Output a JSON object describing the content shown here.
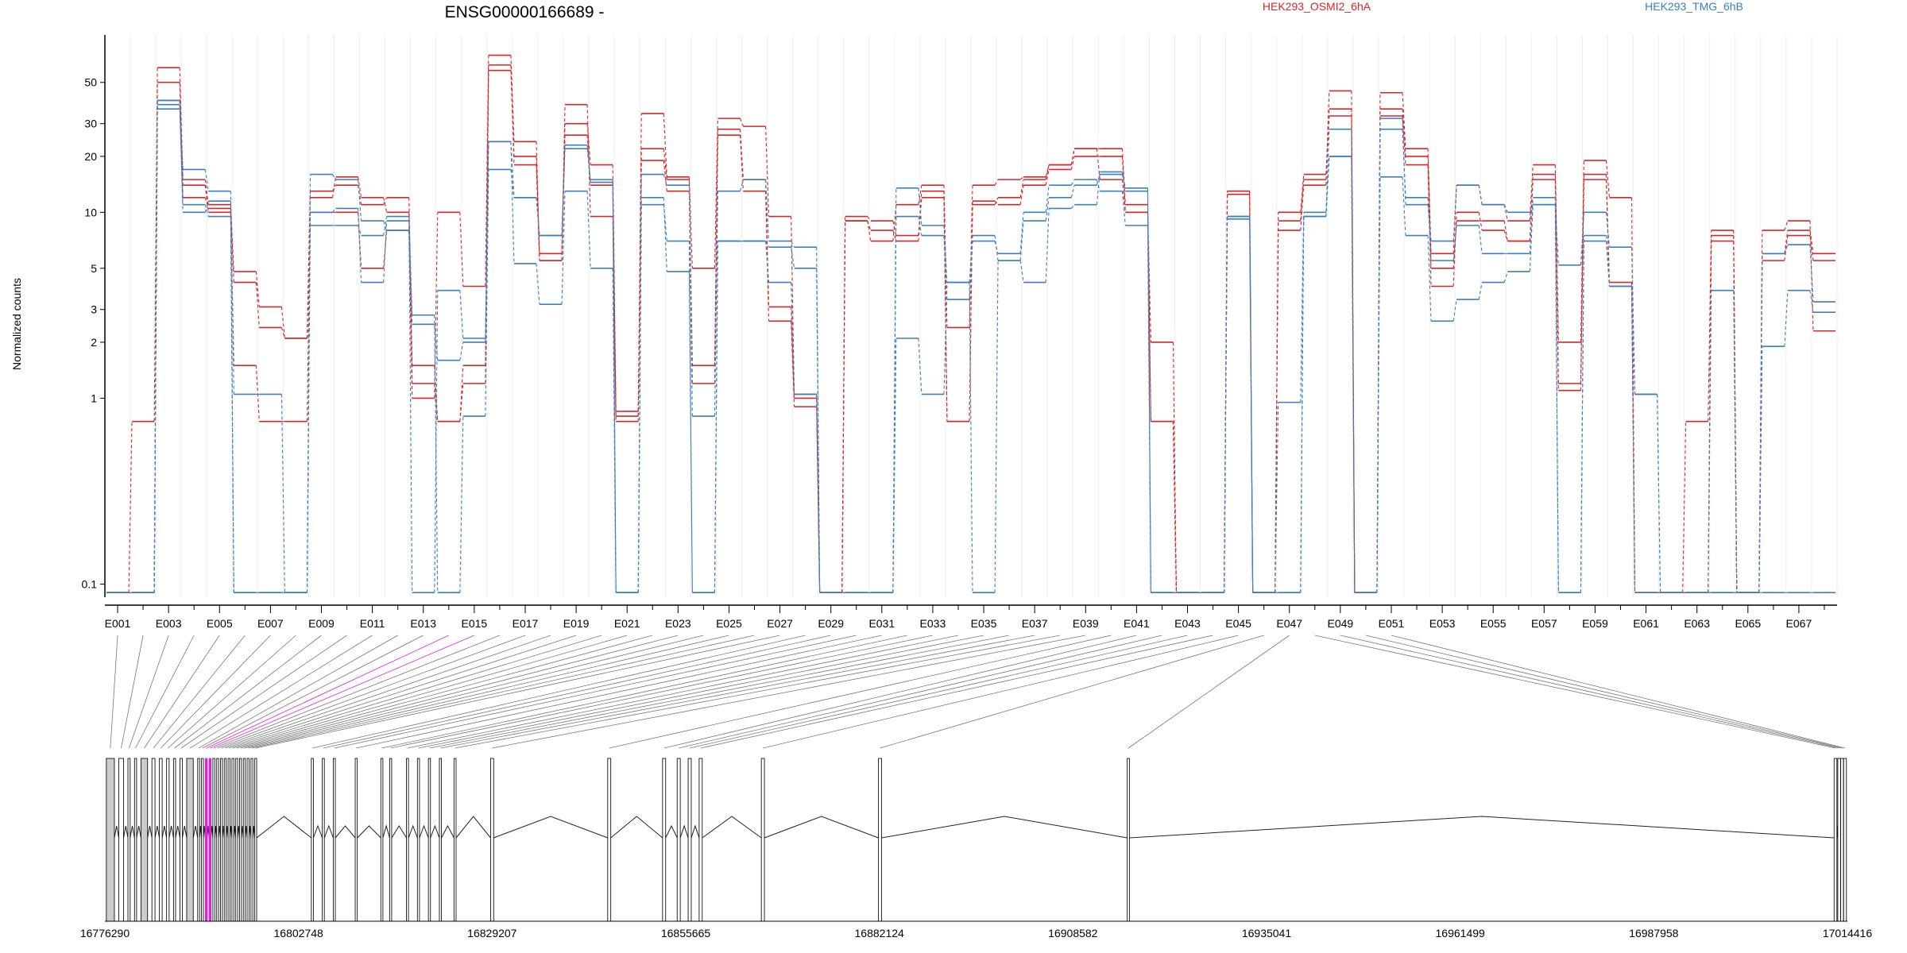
{
  "header": {
    "title": "ENSG00000166689 -",
    "legend": [
      {
        "label": "HEK293_OSMI2_6hA",
        "color": "#d62728"
      },
      {
        "label": "HEK293_TMG_6hB",
        "color": "#3a7fc1"
      }
    ]
  },
  "chart_data": {
    "type": "line",
    "title": "ENSG00000166689 -",
    "ylabel": "Normalized counts",
    "xlabel": "",
    "y_scale": "log",
    "ylim": [
      0.085,
      90
    ],
    "y_ticks": [
      0.1,
      1,
      2,
      3,
      5,
      10,
      20,
      30,
      50
    ],
    "y_tick_labels": [
      "0.1",
      "1",
      "2",
      "3",
      "5",
      "10",
      "20",
      "30",
      "50"
    ],
    "exon_count": 68,
    "x_tick_labels": [
      "E001",
      "E003",
      "E005",
      "E007",
      "E009",
      "E011",
      "E013",
      "E015",
      "E017",
      "E019",
      "E021",
      "E023",
      "E025",
      "E027",
      "E029",
      "E031",
      "E033",
      "E035",
      "E037",
      "E039",
      "E041",
      "E043",
      "E045",
      "E047",
      "E049",
      "E051",
      "E053",
      "E055",
      "E057",
      "E059",
      "E061",
      "E063",
      "E065",
      "E067"
    ],
    "legend_placement": "top",
    "series": [
      {
        "name": "HEK293_OSMI2_6hA",
        "color": "#d62728",
        "values": [
          0.09,
          0.75,
          60,
          15,
          11,
          4.8,
          3.1,
          2.1,
          12,
          15.5,
          12,
          10,
          1.5,
          0.75,
          1.5,
          58,
          20,
          6,
          30,
          18,
          0.85,
          22,
          15,
          1.5,
          28,
          15,
          3.1,
          1.0,
          0.09,
          9,
          8,
          7,
          12,
          0.75,
          11,
          12,
          15,
          18,
          22,
          22,
          11,
          0.75,
          0.09,
          0.09,
          13,
          0.09,
          10,
          16,
          36,
          0.09,
          36,
          20,
          5,
          9,
          9,
          7,
          16,
          1.2,
          16,
          4.2,
          0.09,
          0.09,
          0.75,
          8,
          0.09,
          6,
          8,
          6
        ]
      },
      {
        "name": "HEK293_OSMI2_6hA",
        "color": "#d62728",
        "values": [
          0.09,
          0.09,
          50,
          14,
          10,
          4.2,
          2.4,
          2.1,
          13,
          14,
          11,
          12,
          1.2,
          0.75,
          1.2,
          62,
          18,
          5.5,
          26,
          14,
          0.8,
          19,
          13,
          1.2,
          26,
          13,
          2.6,
          0.9,
          0.09,
          9.5,
          9,
          7.5,
          13,
          0.75,
          11.5,
          11,
          14,
          17,
          20,
          20,
          10,
          0.75,
          0.09,
          0.09,
          12.5,
          0.09,
          9,
          15,
          33,
          0.09,
          33,
          18,
          4,
          10,
          8,
          7,
          15,
          1.1,
          15,
          4,
          0.09,
          0.09,
          0.09,
          7,
          0.09,
          5.5,
          7.5,
          5.5
        ]
      },
      {
        "name": "HEK293_OSMI2_6hA",
        "color": "#d62728",
        "values": [
          0.09,
          0.09,
          40,
          12,
          10.5,
          1.5,
          0.75,
          0.75,
          10,
          10,
          5,
          8,
          1.0,
          10,
          4,
          70,
          24,
          5.5,
          38,
          9.5,
          0.75,
          34,
          15.5,
          5.0,
          32,
          29,
          9.5,
          1.05,
          0.09,
          9,
          7,
          11,
          14,
          2.4,
          14,
          15,
          15.5,
          18,
          22,
          15,
          10,
          2.0,
          0.09,
          0.09,
          13,
          0.09,
          8,
          14,
          45,
          0.09,
          44,
          22,
          6,
          14,
          11,
          9,
          18,
          2.0,
          19,
          12,
          0.09,
          0.09,
          0.09,
          7.5,
          0.09,
          8,
          9,
          2.3
        ]
      },
      {
        "name": "HEK293_TMG_6hB",
        "color": "#3a7fc1",
        "values": [
          0.09,
          0.09,
          38,
          17,
          13,
          1.05,
          1.05,
          0.09,
          16,
          15,
          9,
          8,
          2.5,
          1.6,
          2.0,
          24,
          12,
          7.5,
          22,
          14.5,
          0.09,
          16,
          14,
          0.8,
          13,
          15,
          7,
          6.5,
          0.09,
          0.09,
          0.09,
          9.5,
          7.5,
          3.4,
          7,
          6,
          10,
          14,
          15,
          13,
          8.5,
          0.09,
          0.09,
          0.09,
          9.5,
          0.09,
          0.95,
          10,
          28,
          0.09,
          32,
          11,
          7,
          14,
          11,
          10,
          11,
          5.2,
          10,
          6.5,
          1.05,
          0.09,
          0.09,
          0.09,
          0.09,
          6,
          6.7,
          3.3
        ]
      },
      {
        "name": "HEK293_TMG_6hB",
        "color": "#3a7fc1",
        "values": [
          0.09,
          0.09,
          36,
          11,
          9.5,
          0.09,
          0.09,
          0.09,
          8.5,
          8.5,
          7.5,
          9.5,
          2.8,
          0.09,
          0.8,
          17,
          12,
          7.5,
          23,
          15,
          0.09,
          11,
          7,
          0.09,
          7,
          7,
          6.5,
          5.0,
          0.09,
          0.09,
          0.09,
          13.5,
          8.5,
          4.2,
          7.5,
          5.5,
          9,
          12,
          14,
          16,
          13,
          0.09,
          0.09,
          0.09,
          9.2,
          0.09,
          0.09,
          9.5,
          20,
          0.09,
          28,
          12,
          5.5,
          8.5,
          6,
          6,
          12,
          0.09,
          7,
          4,
          0.09,
          0.09,
          0.09,
          3.8,
          0.09,
          1.9,
          3.8,
          2.9
        ]
      },
      {
        "name": "HEK293_TMG_6hB",
        "color": "#3a7fc1",
        "values": [
          0.09,
          0.09,
          40,
          10,
          11.5,
          0.09,
          0.09,
          0.09,
          10,
          10.5,
          4.2,
          9,
          0.09,
          3.8,
          2.1,
          24,
          5.3,
          3.2,
          13,
          5,
          0.09,
          12,
          4.8,
          0.09,
          7,
          7,
          4.2,
          1.05,
          0.09,
          0.09,
          0.09,
          2.1,
          1.05,
          4.2,
          0.09,
          5.5,
          4.2,
          10.5,
          11,
          16.5,
          13.5,
          0.09,
          0.09,
          0.09,
          9.5,
          0.09,
          0.09,
          9.5,
          20,
          0.09,
          15.5,
          7.5,
          2.6,
          3.4,
          4.2,
          4.8,
          11,
          0.09,
          7.5,
          4,
          1.05,
          0.09,
          0.09,
          0.09,
          0.09,
          0.09,
          0.09,
          0.09
        ]
      }
    ],
    "gene_model": {
      "start": 16776290,
      "end": 17014416,
      "tick_labels": [
        "16776290",
        "16802748",
        "16829207",
        "16855665",
        "16882124",
        "16908582",
        "16935041",
        "16961499",
        "16987958",
        "17014416"
      ],
      "highlight_color": "#e020e0"
    }
  }
}
